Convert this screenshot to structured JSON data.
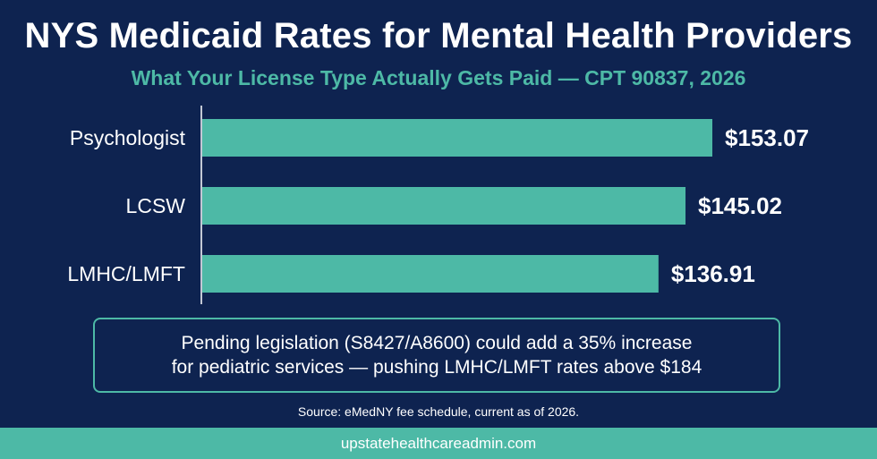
{
  "header": {
    "title": "NYS Medicaid Rates for Mental Health Providers",
    "subtitle": "What Your License Type Actually Gets Paid — CPT 90837, 2026"
  },
  "chart_data": {
    "type": "bar",
    "orientation": "horizontal",
    "categories": [
      "Psychologist",
      "LCSW",
      "LMHC/LMFT"
    ],
    "values": [
      153.07,
      145.02,
      136.91
    ],
    "value_labels": [
      "$153.07",
      "$145.02",
      "$136.91"
    ],
    "xlim": [
      0,
      153.07
    ],
    "grid": false,
    "bar_color": "#4db9a6"
  },
  "note": {
    "line1": "Pending legislation (S8427/A8600) could add a 35% increase",
    "line2": "for pediatric services — pushing LMHC/LMFT rates above $184"
  },
  "source": "Source: eMedNY fee schedule, current as of 2026.",
  "footer": {
    "url": "upstatehealthcareadmin.com"
  },
  "colors": {
    "background": "#0e2350",
    "accent": "#4db9a6",
    "text": "#ffffff"
  }
}
